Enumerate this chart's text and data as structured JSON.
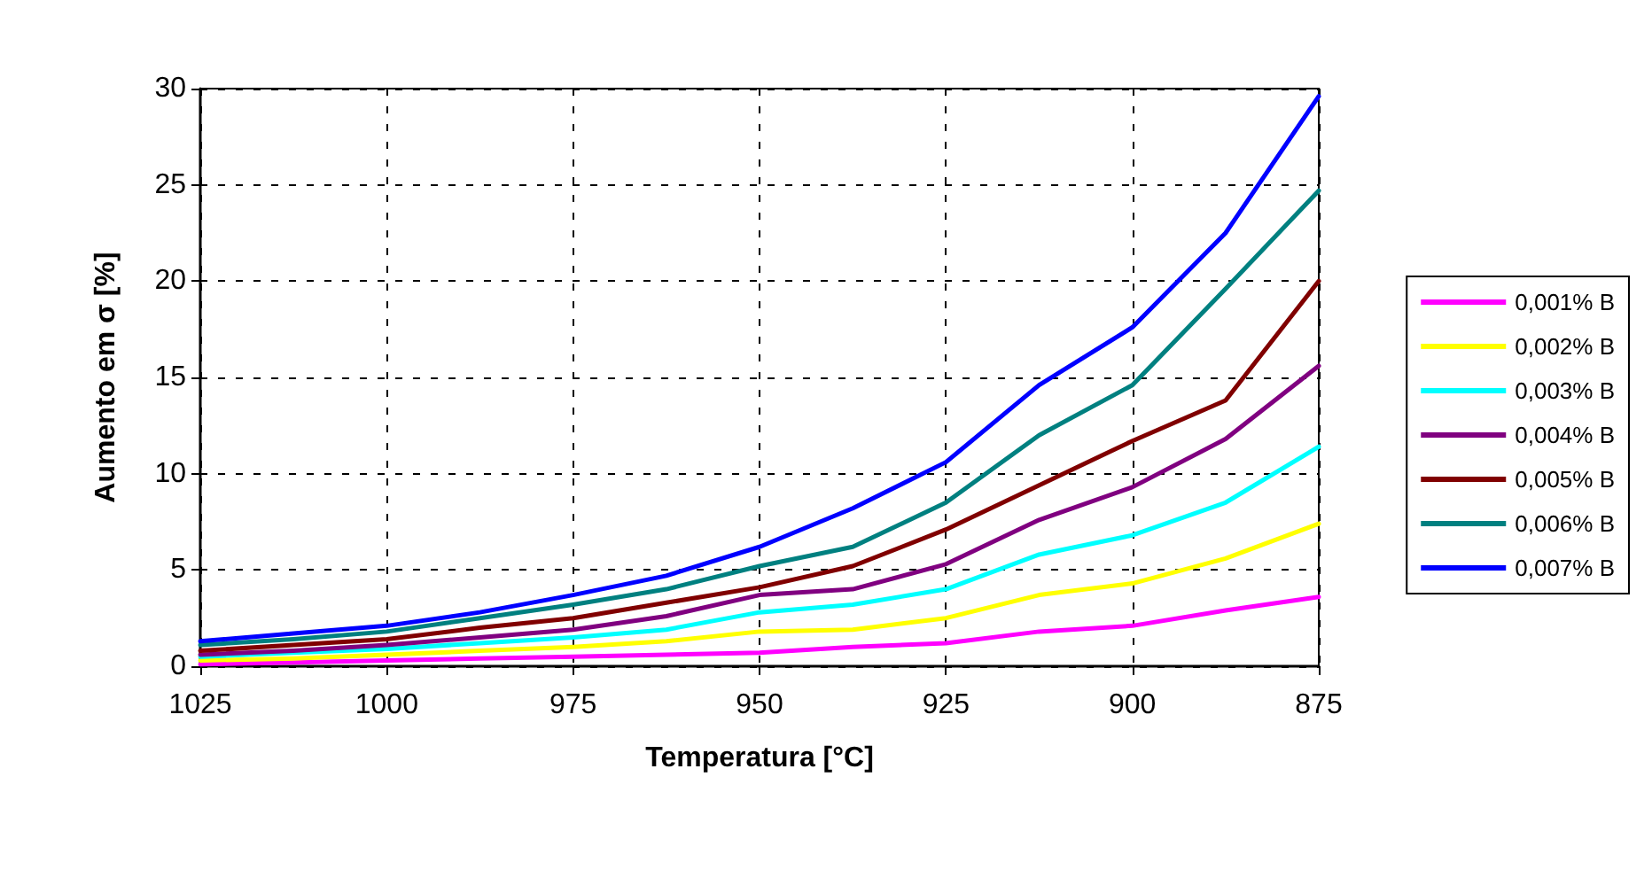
{
  "chart_data": {
    "type": "line",
    "xlabel": "Temperatura [°C]",
    "ylabel": "Aumento em σ [%]",
    "x": [
      1025,
      1012.5,
      1000,
      987.5,
      975,
      962.5,
      950,
      937.5,
      925,
      912.5,
      900,
      887.5,
      875
    ],
    "xlim": [
      1025,
      875
    ],
    "xticks": [
      1025,
      1000,
      975,
      950,
      925,
      900,
      875
    ],
    "ylim": [
      0,
      30
    ],
    "yticks": [
      0,
      5,
      10,
      15,
      20,
      25,
      30
    ],
    "grid": true,
    "legend": "right",
    "marker": "none",
    "line_style": "solid",
    "series": [
      {
        "name": "0,001% B",
        "color": "#ff00ff",
        "values": [
          0.1,
          0.2,
          0.3,
          0.4,
          0.5,
          0.6,
          0.7,
          1.0,
          1.2,
          1.8,
          2.1,
          2.9,
          3.6
        ]
      },
      {
        "name": "0,002% B",
        "color": "#ffff00",
        "values": [
          0.3,
          0.4,
          0.6,
          0.8,
          1.0,
          1.3,
          1.8,
          1.9,
          2.5,
          3.7,
          4.3,
          5.6,
          7.4
        ]
      },
      {
        "name": "0,003% B",
        "color": "#00ffff",
        "values": [
          0.5,
          0.7,
          0.9,
          1.2,
          1.5,
          1.9,
          2.8,
          3.2,
          4.0,
          5.8,
          6.8,
          8.5,
          11.4
        ]
      },
      {
        "name": "0,004% B",
        "color": "#800080",
        "values": [
          0.6,
          0.8,
          1.1,
          1.5,
          1.9,
          2.6,
          3.7,
          4.0,
          5.3,
          7.6,
          9.3,
          11.8,
          15.6
        ]
      },
      {
        "name": "0,005% B",
        "color": "#800000",
        "values": [
          0.8,
          1.1,
          1.4,
          2.0,
          2.5,
          3.3,
          4.1,
          5.2,
          7.1,
          9.4,
          11.7,
          13.8,
          20.0
        ]
      },
      {
        "name": "0,006% B",
        "color": "#008080",
        "values": [
          1.1,
          1.4,
          1.8,
          2.5,
          3.2,
          4.0,
          5.2,
          6.2,
          8.5,
          12.0,
          14.6,
          19.6,
          24.7
        ]
      },
      {
        "name": "0,007% B",
        "color": "#0000ff",
        "values": [
          1.3,
          1.7,
          2.1,
          2.8,
          3.7,
          4.7,
          6.2,
          8.2,
          10.6,
          14.6,
          17.6,
          22.5,
          29.6
        ]
      }
    ]
  }
}
